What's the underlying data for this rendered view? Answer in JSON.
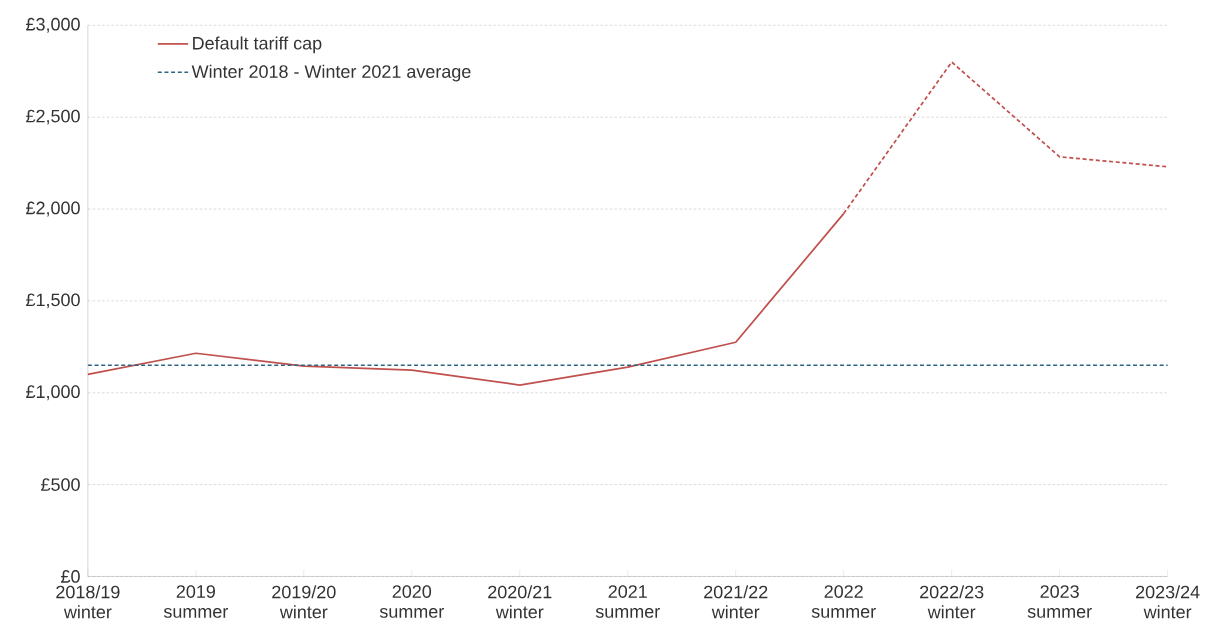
{
  "chart_data": {
    "type": "line",
    "categories": [
      "2018/19 winter",
      "2019 summer",
      "2019/20 winter",
      "2020 summer",
      "2020/21 winter",
      "2021 summer",
      "2021/22 winter",
      "2022 summer",
      "2022/23 winter",
      "2023 summer",
      "2023/24 winter"
    ],
    "series": [
      {
        "name": "Default tariff cap",
        "color": "#c0504d",
        "line_style": "solid",
        "values": [
          1100,
          1215,
          1145,
          1123,
          1042,
          1139,
          1275,
          1975,
          null,
          null,
          null
        ]
      },
      {
        "color": "#c0504d",
        "line_style": "dashed",
        "values": [
          null,
          null,
          null,
          null,
          null,
          null,
          null,
          1975,
          2800,
          2284,
          2230
        ]
      }
    ],
    "ylim": [
      0,
      3000
    ],
    "yticks": [
      {
        "value": 0,
        "label": "£0"
      },
      {
        "value": 500,
        "label": "£500"
      },
      {
        "value": 1000,
        "label": "£1,000"
      },
      {
        "value": 1500,
        "label": "£1,500"
      },
      {
        "value": 2000,
        "label": "£2,000"
      },
      {
        "value": 2500,
        "label": "£2,500"
      },
      {
        "value": 3000,
        "label": "£3,000"
      }
    ],
    "ref_lines": [
      {
        "axis": "y",
        "value": 1150,
        "label": "Winter 2018 - Winter 2021 average",
        "color": "#2e6480",
        "line_style": "dashed"
      }
    ],
    "grid": "y",
    "legend": "top left",
    "marker": "none"
  }
}
